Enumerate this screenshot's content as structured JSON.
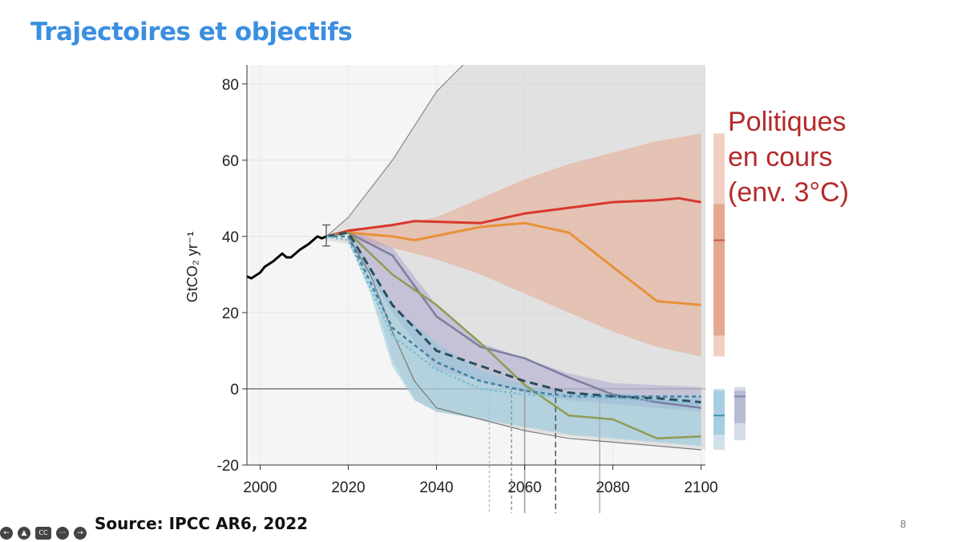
{
  "slide": {
    "title": "Trajectoires et objectifs",
    "title_color": "#3b8fe0",
    "source": "Source: IPCC AR6, 2022",
    "page_number": "8"
  },
  "annotation": {
    "lines": [
      "Politiques",
      "en cours",
      "(env. 3°C)"
    ],
    "color": "#b5292a"
  },
  "controls": [
    "previous-icon",
    "pointer-icon",
    "captions-icon",
    "more-icon",
    "next-icon"
  ],
  "chart_data": {
    "type": "line",
    "ylabel": "GtCO₂ yr⁻¹",
    "xlim": [
      1997,
      2101
    ],
    "ylim": [
      -20,
      85
    ],
    "x_ticks": [
      2000,
      2020,
      2040,
      2060,
      2080,
      2100
    ],
    "y_ticks": [
      -20,
      0,
      20,
      40,
      60,
      80
    ],
    "grid": true,
    "zero_line": true,
    "historical": {
      "color": "#000000",
      "points": [
        [
          1997,
          29.5
        ],
        [
          1998,
          29
        ],
        [
          2000,
          30.5
        ],
        [
          2001,
          32
        ],
        [
          2003,
          33.5
        ],
        [
          2005,
          35.5
        ],
        [
          2006,
          34.5
        ],
        [
          2007,
          34.5
        ],
        [
          2009,
          36.5
        ],
        [
          2011,
          38
        ],
        [
          2012,
          39
        ],
        [
          2013,
          40
        ],
        [
          2014,
          39.5
        ],
        [
          2015,
          40
        ]
      ]
    },
    "error_bar": {
      "x": 2015,
      "low": 37.5,
      "high": 43
    },
    "areas": [
      {
        "color": "#d3d3d3",
        "opacity": 0.6,
        "upper": [
          [
            2015,
            40
          ],
          [
            2020,
            45
          ],
          [
            2030,
            60
          ],
          [
            2040,
            78
          ],
          [
            2046,
            90
          ],
          [
            2101,
            90
          ]
        ],
        "lower": [
          [
            2101,
            -16
          ],
          [
            2080,
            -14
          ],
          [
            2060,
            -11
          ],
          [
            2050,
            -8
          ],
          [
            2040,
            -6
          ],
          [
            2035,
            -3
          ],
          [
            2030,
            8
          ],
          [
            2025,
            28
          ],
          [
            2020,
            38
          ],
          [
            2015,
            39
          ]
        ]
      },
      {
        "color": "#e8a488",
        "opacity": 0.5,
        "upper": [
          [
            2020,
            42
          ],
          [
            2030,
            43
          ],
          [
            2040,
            45
          ],
          [
            2050,
            50
          ],
          [
            2060,
            55
          ],
          [
            2070,
            59
          ],
          [
            2080,
            62
          ],
          [
            2090,
            65
          ],
          [
            2100,
            67
          ]
        ],
        "lower": [
          [
            2100,
            8.5
          ],
          [
            2090,
            11
          ],
          [
            2080,
            15
          ],
          [
            2070,
            20
          ],
          [
            2060,
            25
          ],
          [
            2050,
            30
          ],
          [
            2040,
            34
          ],
          [
            2030,
            37
          ],
          [
            2020,
            39
          ]
        ]
      },
      {
        "color": "#a39ecb",
        "opacity": 0.45,
        "upper": [
          [
            2020,
            42
          ],
          [
            2030,
            37
          ],
          [
            2040,
            22
          ],
          [
            2050,
            12
          ],
          [
            2060,
            8
          ],
          [
            2070,
            4
          ],
          [
            2080,
            1.5
          ],
          [
            2090,
            1
          ],
          [
            2100,
            0.5
          ]
        ],
        "lower": [
          [
            2100,
            -6
          ],
          [
            2090,
            -5
          ],
          [
            2080,
            -4
          ],
          [
            2070,
            -3
          ],
          [
            2060,
            -1
          ],
          [
            2050,
            2
          ],
          [
            2040,
            5
          ],
          [
            2030,
            20
          ],
          [
            2020,
            39
          ]
        ]
      },
      {
        "color": "#8fc6da",
        "opacity": 0.55,
        "upper": [
          [
            2020,
            42
          ],
          [
            2030,
            22
          ],
          [
            2040,
            12
          ],
          [
            2050,
            5
          ],
          [
            2060,
            1
          ],
          [
            2070,
            -1
          ],
          [
            2080,
            -1
          ],
          [
            2090,
            -2
          ],
          [
            2100,
            -2
          ]
        ],
        "lower": [
          [
            2100,
            -15
          ],
          [
            2090,
            -14
          ],
          [
            2080,
            -13
          ],
          [
            2070,
            -12
          ],
          [
            2060,
            -10
          ],
          [
            2050,
            -8
          ],
          [
            2040,
            -6
          ],
          [
            2035,
            -3
          ],
          [
            2030,
            6
          ],
          [
            2025,
            25
          ],
          [
            2020,
            39
          ]
        ]
      }
    ],
    "boundary_lines": [
      {
        "color": "#888888",
        "width": 1.2,
        "points": [
          [
            2015,
            40
          ],
          [
            2020,
            45
          ],
          [
            2030,
            60
          ],
          [
            2040,
            78
          ],
          [
            2046,
            90
          ]
        ]
      },
      {
        "color": "#777777",
        "width": 1.2,
        "points": [
          [
            2020,
            40
          ],
          [
            2025,
            30
          ],
          [
            2030,
            15
          ],
          [
            2035,
            2
          ],
          [
            2040,
            -5
          ],
          [
            2050,
            -8
          ],
          [
            2060,
            -11
          ],
          [
            2070,
            -13
          ],
          [
            2080,
            -14
          ],
          [
            2090,
            -15
          ],
          [
            2100,
            -16
          ]
        ]
      }
    ],
    "series": [
      {
        "color": "#d8372d",
        "width": 3,
        "dash": "",
        "points": [
          [
            2015,
            40
          ],
          [
            2020,
            41.5
          ],
          [
            2030,
            43
          ],
          [
            2035,
            44
          ],
          [
            2050,
            43.5
          ],
          [
            2060,
            46
          ],
          [
            2070,
            47.5
          ],
          [
            2080,
            49
          ],
          [
            2090,
            49.5
          ],
          [
            2095,
            50
          ],
          [
            2100,
            49
          ]
        ]
      },
      {
        "color": "#e8913a",
        "width": 3,
        "dash": "",
        "points": [
          [
            2015,
            40
          ],
          [
            2020,
            41
          ],
          [
            2030,
            40
          ],
          [
            2035,
            39
          ],
          [
            2050,
            42.5
          ],
          [
            2060,
            43.5
          ],
          [
            2070,
            41
          ],
          [
            2080,
            32
          ],
          [
            2090,
            23
          ],
          [
            2100,
            22
          ]
        ]
      },
      {
        "color": "#7b7fa0",
        "width": 2.5,
        "dash": "",
        "points": [
          [
            2015,
            40
          ],
          [
            2020,
            41
          ],
          [
            2030,
            35
          ],
          [
            2035,
            27
          ],
          [
            2040,
            19
          ],
          [
            2050,
            11
          ],
          [
            2060,
            8
          ],
          [
            2070,
            3
          ],
          [
            2080,
            -1.5
          ],
          [
            2090,
            -3.5
          ],
          [
            2100,
            -5
          ]
        ]
      },
      {
        "color": "#8e9c55",
        "width": 2.5,
        "dash": "",
        "points": [
          [
            2015,
            40
          ],
          [
            2020,
            41
          ],
          [
            2030,
            30
          ],
          [
            2040,
            22
          ],
          [
            2050,
            12
          ],
          [
            2060,
            1
          ],
          [
            2070,
            -7
          ],
          [
            2080,
            -8
          ],
          [
            2090,
            -13
          ],
          [
            2100,
            -12.5
          ]
        ]
      },
      {
        "color": "#2b4d5c",
        "width": 3,
        "dash": "10,6",
        "points": [
          [
            2015,
            40
          ],
          [
            2020,
            41
          ],
          [
            2030,
            22
          ],
          [
            2040,
            10
          ],
          [
            2050,
            6
          ],
          [
            2060,
            2
          ],
          [
            2070,
            -1
          ],
          [
            2080,
            -2
          ],
          [
            2090,
            -2.5
          ],
          [
            2100,
            -3.5
          ]
        ]
      },
      {
        "color": "#3f7ea0",
        "width": 2.5,
        "dash": "5,4",
        "points": [
          [
            2015,
            40
          ],
          [
            2020,
            40
          ],
          [
            2030,
            16
          ],
          [
            2040,
            7
          ],
          [
            2050,
            2
          ],
          [
            2060,
            -0.5
          ],
          [
            2070,
            -2
          ],
          [
            2080,
            -2
          ],
          [
            2090,
            -2
          ],
          [
            2100,
            -2
          ]
        ]
      },
      {
        "color": "#7bbcd8",
        "width": 2.5,
        "dash": "3,3",
        "points": [
          [
            2015,
            40
          ],
          [
            2020,
            39
          ],
          [
            2030,
            14
          ],
          [
            2040,
            5
          ],
          [
            2050,
            0
          ],
          [
            2060,
            -1.5
          ],
          [
            2070,
            -2
          ],
          [
            2080,
            -2.5
          ],
          [
            2090,
            -3
          ],
          [
            2100,
            -4
          ]
        ]
      }
    ],
    "vertical_markers": [
      {
        "x": 2052,
        "color": "#9ec5dc",
        "dash": "3,3"
      },
      {
        "x": 2057,
        "color": "#7a9bb0",
        "dash": "4,3"
      },
      {
        "x": 2060,
        "color": "#999999",
        "dash": ""
      },
      {
        "x": 2067,
        "color": "#3e5566",
        "dash": "7,4"
      },
      {
        "x": 2077,
        "color": "#aab0c8",
        "dash": ""
      }
    ],
    "side_bars": [
      {
        "x_offset": 10,
        "width": 14,
        "ranges": [
          [
            8.5,
            67,
            "#f2cfc2"
          ],
          [
            14,
            48.5,
            "#e4a892"
          ]
        ],
        "median": [
          39,
          "#c9574e"
        ]
      },
      {
        "x_offset": 10,
        "width": 14,
        "ranges": [
          [
            -16,
            0,
            "#cfe2ea"
          ],
          [
            -12,
            -0.5,
            "#a7cede"
          ]
        ],
        "median": [
          -7,
          "#3f8fb0"
        ]
      },
      {
        "x_offset": 36,
        "width": 14,
        "ranges": [
          [
            -13.5,
            0.5,
            "#d8dbe8"
          ],
          [
            -9,
            -0.5,
            "#b7bbd4"
          ]
        ],
        "median": [
          -2,
          "#7f86a8"
        ]
      }
    ]
  }
}
